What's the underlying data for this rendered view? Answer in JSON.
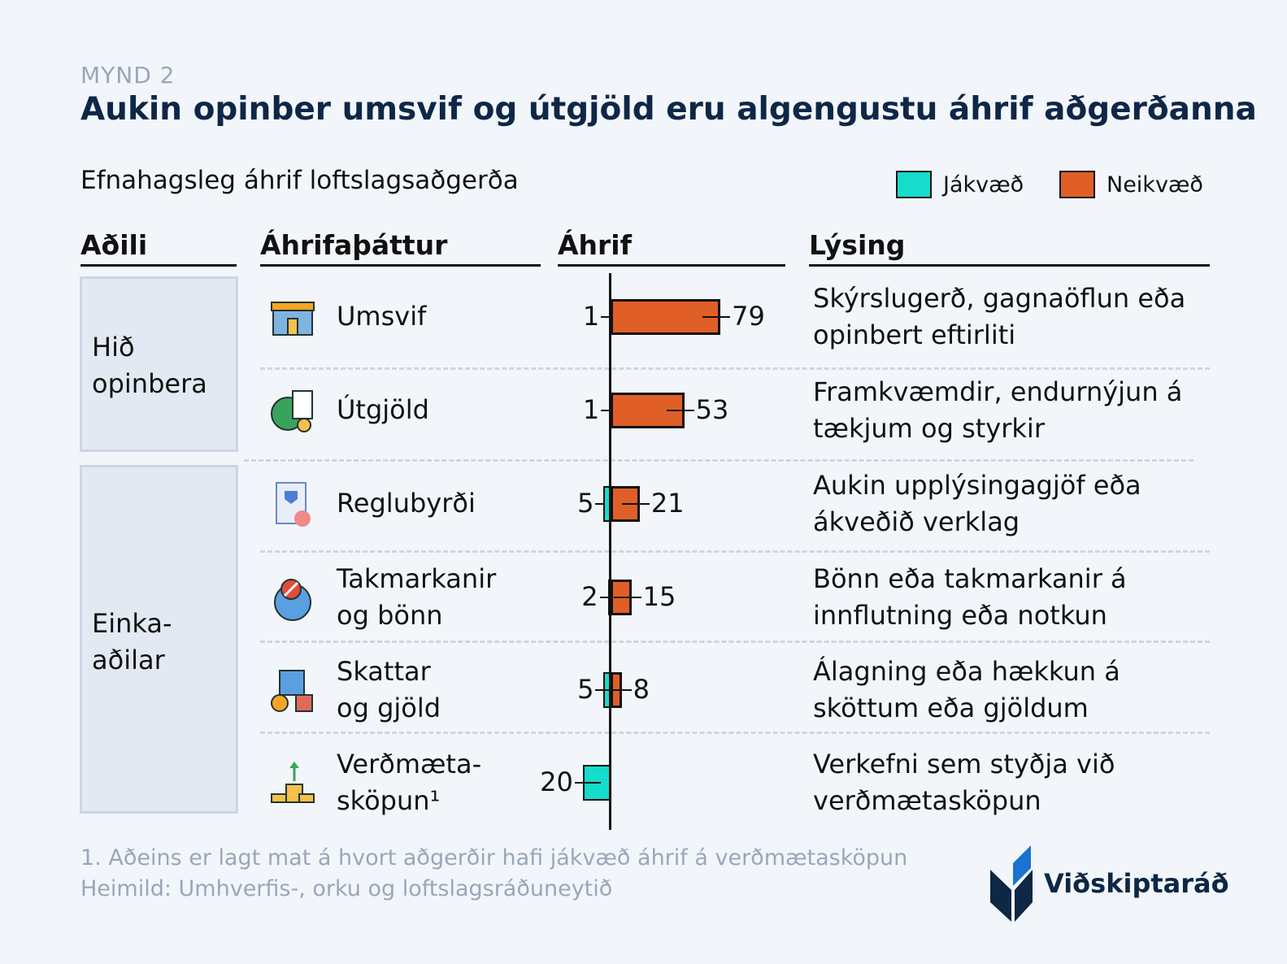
{
  "kicker": "MYND 2",
  "title": "Aukin opinber umsvif og útgjöld eru algengustu áhrif aðgerðanna",
  "subtitle": "Efnahagsleg áhrif loftslagsaðgerða",
  "legend": [
    {
      "label": "Jákvæð",
      "color": "#16dccb"
    },
    {
      "label": "Neikvæð",
      "color": "#e05f27"
    }
  ],
  "columns": {
    "actor": "Aðili",
    "factor": "Áhrifaþáttur",
    "impact": "Áhrif",
    "description": "Lýsing"
  },
  "groups": [
    {
      "label": "Hið opinbera"
    },
    {
      "label": "Einka-aðilar",
      "line1": "Einka-",
      "line2": "aðilar"
    }
  ],
  "group_labels": {
    "g0l1": "Hið",
    "g0l2": "opinbera",
    "g1l1": "Einka-",
    "g1l2": "aðilar"
  },
  "chart_data": {
    "type": "bar",
    "categories": [
      "Umsvif",
      "Útgjöld",
      "Reglubyrði",
      "Takmarkanir og bönn",
      "Skattar og gjöld",
      "Verðmætasköpun¹"
    ],
    "series": [
      {
        "name": "Jákvæð",
        "values": [
          1,
          1,
          5,
          2,
          5,
          20
        ],
        "color": "#16dccb"
      },
      {
        "name": "Neikvæð",
        "values": [
          79,
          53,
          21,
          15,
          8,
          0
        ],
        "color": "#e05f27"
      }
    ],
    "xlabel": "Áhrif"
  },
  "rows": [
    {
      "f1": "Umsvif",
      "f2": "",
      "d1": "Skýrslugerð, gagnaöflun eða",
      "d2": "opinbert eftirliti",
      "pos": "1",
      "neg": "79",
      "icon": "storefront-icon"
    },
    {
      "f1": "Útgjöld",
      "f2": "",
      "d1": "Framkvæmdir, endurnýjun á",
      "d2": "tækjum og styrkir",
      "pos": "1",
      "neg": "53",
      "icon": "globe-invoice-icon"
    },
    {
      "f1": "Reglubyrði",
      "f2": "",
      "d1": "Aukin upplýsingagjöf eða",
      "d2": "ákveðið verklag",
      "pos": "5",
      "neg": "21",
      "icon": "certificate-icon"
    },
    {
      "f1": "Takmarkanir",
      "f2": "og bönn",
      "d1": "Bönn eða takmarkanir á",
      "d2": "innflutning eða notkun",
      "pos": "2",
      "neg": "15",
      "icon": "globe-ban-icon"
    },
    {
      "f1": "Skattar",
      "f2": "og gjöld",
      "d1": "Álagning eða hækkun á",
      "d2": "sköttum eða gjöldum",
      "pos": "5",
      "neg": "8",
      "icon": "tax-icon"
    },
    {
      "f1": "Verðmæta-",
      "f2": "sköpun¹",
      "d1": "Verkefni sem styðja við",
      "d2": "verðmætasköpun",
      "pos": "20",
      "neg": "",
      "icon": "coins-growth-icon"
    }
  ],
  "footnote": "1. Aðeins er lagt mat á hvort aðgerðir hafi jákvæð áhrif á verðmætasköpun",
  "source": "Heimild: Umhverfis-, orku og loftslagsráðuneytið",
  "logo": "Viðskiptaráð"
}
